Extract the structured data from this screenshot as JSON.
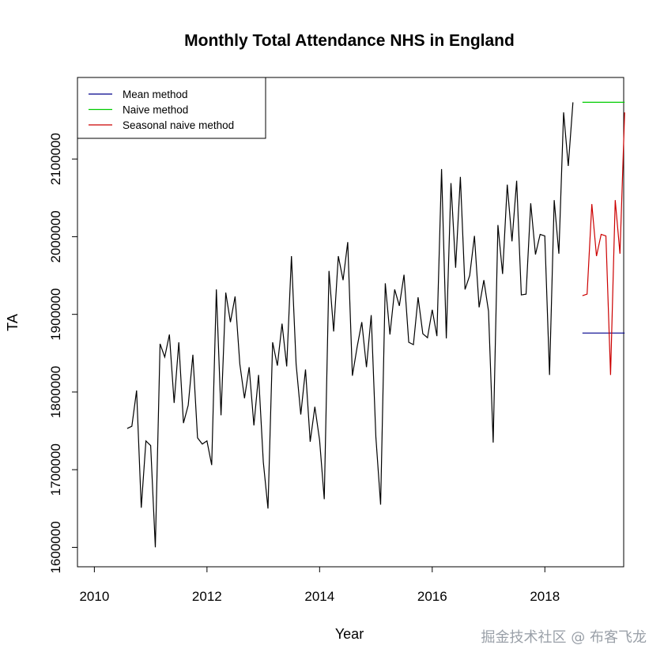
{
  "chart_data": {
    "type": "line",
    "title": "Monthly Total Attendance NHS in England",
    "xlabel": "Year",
    "ylabel": "TA",
    "xlim": [
      2009.7,
      2019.4
    ],
    "ylim": [
      1575000,
      2205000
    ],
    "xticks": [
      2010,
      2012,
      2014,
      2016,
      2018
    ],
    "xtick_labels": [
      "2010",
      "2012",
      "2014",
      "2016",
      "2018"
    ],
    "yticks": [
      1600000,
      1700000,
      1800000,
      1900000,
      2000000,
      2100000
    ],
    "ytick_labels": [
      "1600000",
      "1700000",
      "1800000",
      "1900000",
      "2000000",
      "2100000"
    ],
    "legend": {
      "position": "top-left",
      "entries": [
        {
          "label": "Mean method",
          "color": "#00008b"
        },
        {
          "label": "Naive method",
          "color": "#00cc00"
        },
        {
          "label": "Seasonal naive method",
          "color": "#cc0000"
        }
      ]
    },
    "series": [
      {
        "name": "TA",
        "color": "#000000",
        "start": 2010.583,
        "step": 0.08333,
        "values": [
          1753000,
          1756000,
          1802000,
          1651000,
          1737000,
          1731000,
          1600000,
          1862000,
          1845000,
          1874000,
          1786000,
          1864000,
          1760000,
          1783000,
          1848000,
          1741000,
          1733000,
          1737000,
          1706000,
          1932000,
          1770000,
          1928000,
          1890000,
          1923000,
          1836000,
          1792000,
          1832000,
          1757000,
          1822000,
          1710000,
          1650000,
          1864000,
          1834000,
          1888000,
          1833000,
          1975000,
          1836000,
          1771000,
          1829000,
          1736000,
          1781000,
          1738000,
          1662000,
          1956000,
          1878000,
          1975000,
          1944000,
          1993000,
          1821000,
          1858000,
          1890000,
          1832000,
          1899000,
          1742000,
          1655000,
          1940000,
          1874000,
          1932000,
          1911000,
          1951000,
          1864000,
          1861000,
          1922000,
          1875000,
          1870000,
          1906000,
          1872000,
          2087000,
          1869000,
          2069000,
          1960000,
          2077000,
          1932000,
          1950000,
          2001000,
          1909000,
          1944000,
          1904000,
          1735000,
          2015000,
          1952000,
          2067000,
          1994000,
          2072000,
          1925000,
          1926000,
          2043000,
          1977000,
          2003000,
          2001000,
          1822000,
          2047000,
          1978000,
          2160000,
          2091000,
          2173000
        ]
      },
      {
        "name": "Mean method",
        "color": "#00008b",
        "start": 2018.667,
        "step": 0.08333,
        "values": [
          1876000,
          1876000,
          1876000,
          1876000,
          1876000,
          1876000,
          1876000,
          1876000,
          1876000,
          1876000
        ]
      },
      {
        "name": "Naive method",
        "color": "#00cc00",
        "start": 2018.667,
        "step": 0.08333,
        "values": [
          2173000,
          2173000,
          2173000,
          2173000,
          2173000,
          2173000,
          2173000,
          2173000,
          2173000,
          2173000
        ]
      },
      {
        "name": "Seasonal naive method",
        "color": "#cc0000",
        "start": 2018.667,
        "step": 0.08333,
        "values": [
          1924000,
          1926000,
          2042000,
          1975000,
          2003000,
          2001000,
          1822000,
          2047000,
          1978000,
          2160000
        ]
      }
    ]
  },
  "watermark": "掘金技术社区 @ 布客飞龙"
}
